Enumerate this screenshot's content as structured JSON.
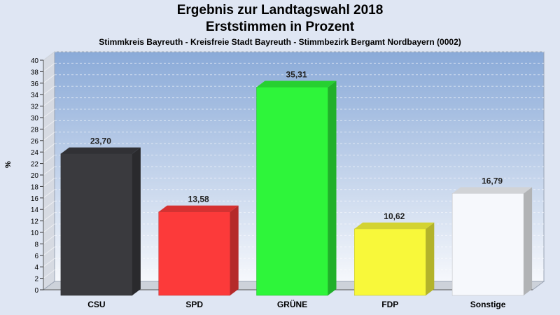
{
  "title": "Ergebnis zur Landtagswahl 2018",
  "subtitle": "Erststimmen in Prozent",
  "caption": "Stimmkreis Bayreuth - Kreisfreie Stadt Bayreuth - Stimmbezirk Bergamt Nordbayern (0002)",
  "chart_data": {
    "type": "bar",
    "categories": [
      "CSU",
      "SPD",
      "GRÜNE",
      "FDP",
      "Sonstige"
    ],
    "values": [
      23.7,
      13.58,
      35.31,
      10.62,
      16.79
    ],
    "value_labels": [
      "23,70",
      "13,58",
      "35,31",
      "10,62",
      "16,79"
    ],
    "colors": [
      "#3a3a3e",
      "#fc3a3a",
      "#2ef53a",
      "#f8f83a",
      "#f6f8fc"
    ],
    "ylabel": "%",
    "ylim": [
      0,
      40
    ],
    "yticks": [
      0,
      2,
      4,
      6,
      8,
      10,
      12,
      14,
      16,
      18,
      20,
      22,
      24,
      26,
      28,
      30,
      32,
      34,
      36,
      38,
      40
    ],
    "grid": true,
    "legend": "none"
  }
}
